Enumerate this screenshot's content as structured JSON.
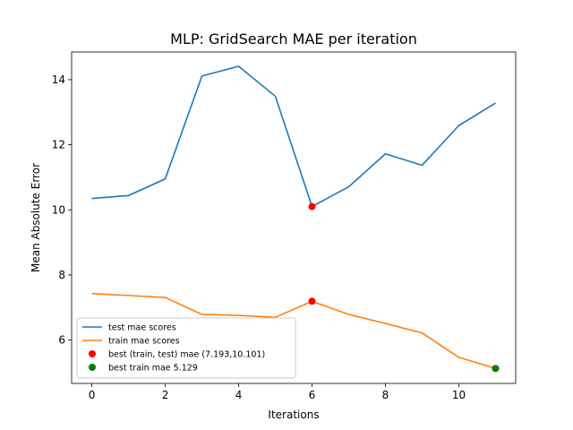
{
  "chart_data": {
    "type": "line",
    "title": "MLP: GridSearch MAE per iteration",
    "xlabel": "Iterations",
    "ylabel": "Mean Absolute Error",
    "xlim": [
      -0.55,
      11.55
    ],
    "ylim": [
      4.67,
      14.85
    ],
    "xticks": [
      0,
      2,
      4,
      6,
      8,
      10
    ],
    "yticks": [
      6,
      8,
      10,
      12,
      14
    ],
    "grid": false,
    "legend_position": "lower-left",
    "x": [
      0,
      1,
      2,
      3,
      4,
      5,
      6,
      7,
      8,
      9,
      10,
      11
    ],
    "series": [
      {
        "name": "test mae scores",
        "color": "#1f77b4",
        "values": [
          10.35,
          10.44,
          10.95,
          14.11,
          14.41,
          13.49,
          10.1,
          10.71,
          11.72,
          11.37,
          12.59,
          13.28
        ]
      },
      {
        "name": "train mae scores",
        "color": "#ff7f0e",
        "values": [
          7.43,
          7.37,
          7.31,
          6.79,
          6.76,
          6.7,
          7.19,
          6.79,
          6.51,
          6.22,
          5.47,
          5.13
        ]
      }
    ],
    "markers": [
      {
        "name": "best (train, test) mae (7.193,10.101)",
        "color": "#ff0000",
        "points": [
          [
            6,
            10.101
          ],
          [
            6,
            7.193
          ]
        ]
      },
      {
        "name": "best train mae 5.129",
        "color": "#008000",
        "points": [
          [
            11,
            5.129
          ]
        ]
      }
    ]
  }
}
